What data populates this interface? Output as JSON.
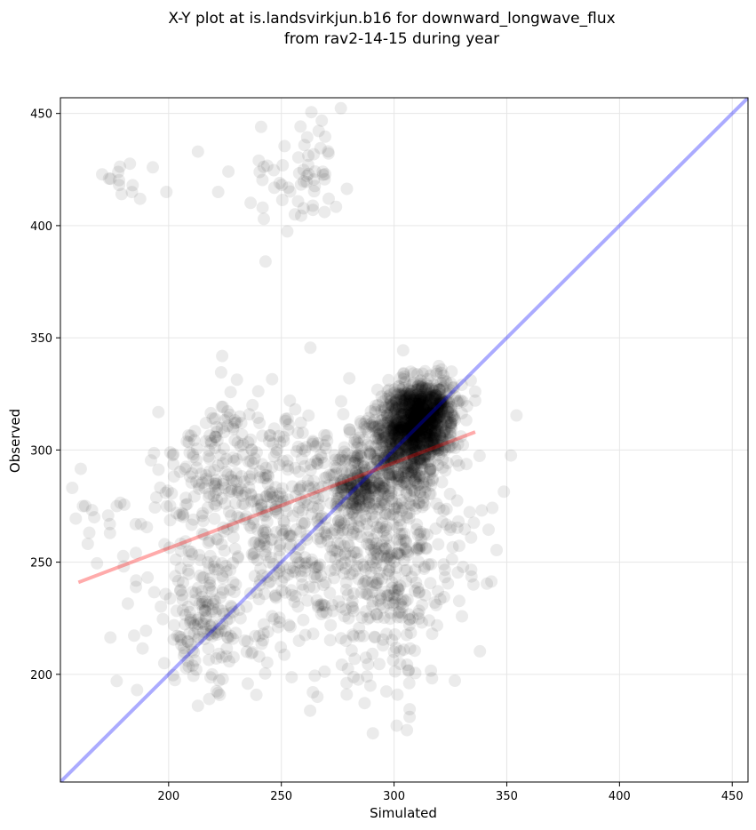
{
  "chart_data": {
    "type": "scatter",
    "title_lines": [
      "X-Y plot at is.landsvirkjun.b16 for downward_longwave_flux",
      "from rav2-14-15 during year"
    ],
    "xlabel": "Simulated",
    "ylabel": "Observed",
    "xlim": [
      152,
      457
    ],
    "ylim": [
      152,
      457
    ],
    "xticks": [
      200,
      250,
      300,
      350,
      400,
      450
    ],
    "yticks": [
      200,
      250,
      300,
      350,
      400,
      450
    ],
    "grid": true,
    "point_color": "#000000",
    "point_alpha": 0.08,
    "one_to_one_line": {
      "color": "#0000ff",
      "x": [
        152,
        457
      ],
      "y": [
        152,
        457
      ]
    },
    "regression_line": {
      "color": "#ff0000",
      "x": [
        160,
        336
      ],
      "y": [
        241,
        308
      ]
    },
    "clusters": [
      {
        "cx": 310,
        "cy": 312,
        "sx": 7,
        "sy": 9,
        "n": 900,
        "rot": 0.6
      },
      {
        "cx": 300,
        "cy": 296,
        "sx": 10,
        "sy": 10,
        "n": 350,
        "rot": 0.5
      },
      {
        "cx": 284,
        "cy": 283,
        "sx": 5,
        "sy": 6,
        "n": 120,
        "rot": 0
      },
      {
        "cx": 318,
        "cy": 320,
        "sx": 5,
        "sy": 6,
        "n": 200,
        "rot": 0
      },
      {
        "cx": 260,
        "cy": 265,
        "sx": 32,
        "sy": 28,
        "n": 700,
        "rot": 0
      },
      {
        "cx": 300,
        "cy": 250,
        "sx": 15,
        "sy": 30,
        "n": 280,
        "rot": 0
      },
      {
        "cx": 215,
        "cy": 222,
        "sx": 12,
        "sy": 12,
        "n": 130,
        "rot": 0
      },
      {
        "cx": 225,
        "cy": 295,
        "sx": 15,
        "sy": 12,
        "n": 110,
        "rot": 0
      },
      {
        "cx": 175,
        "cy": 270,
        "sx": 12,
        "sy": 10,
        "n": 18,
        "rot": 0
      },
      {
        "cx": 260,
        "cy": 424,
        "sx": 9,
        "sy": 10,
        "n": 45,
        "rot": 0
      },
      {
        "cx": 178,
        "cy": 420,
        "sx": 6,
        "sy": 4,
        "n": 12,
        "rot": 0
      },
      {
        "cx": 245,
        "cy": 417,
        "sx": 12,
        "sy": 5,
        "n": 10,
        "rot": 0
      }
    ],
    "extra_points": [
      [
        213,
        433
      ],
      [
        199,
        415
      ],
      [
        193,
        426
      ],
      [
        240,
        429
      ],
      [
        241,
        444
      ],
      [
        243,
        384
      ],
      [
        271,
        412
      ],
      [
        256,
        405
      ],
      [
        264,
        407
      ],
      [
        222,
        415
      ],
      [
        162,
        275
      ],
      [
        163,
        275
      ],
      [
        167,
        270
      ],
      [
        177,
        275
      ],
      [
        174,
        263
      ],
      [
        213,
        186
      ],
      [
        218,
        189
      ],
      [
        186,
        193
      ],
      [
        177,
        197
      ],
      [
        264,
        192
      ],
      [
        279,
        191
      ],
      [
        266,
        190
      ],
      [
        288,
        199
      ],
      [
        322,
        249
      ],
      [
        318,
        232
      ],
      [
        322,
        273
      ],
      [
        334,
        331
      ],
      [
        336,
        322
      ],
      [
        336,
        326
      ],
      [
        330,
        329
      ]
    ]
  }
}
